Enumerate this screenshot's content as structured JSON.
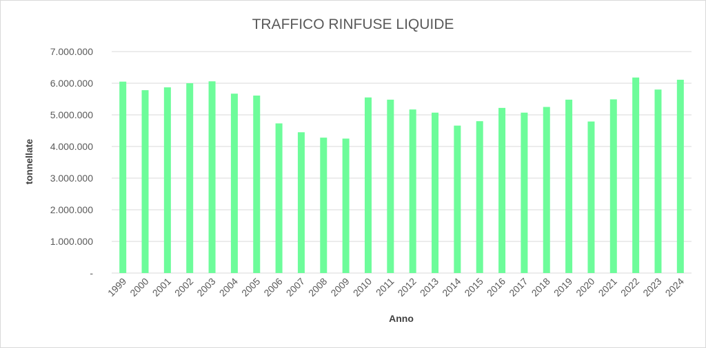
{
  "chart_data": {
    "type": "bar",
    "title": "TRAFFICO RINFUSE LIQUIDE",
    "xlabel": "Anno",
    "ylabel": "tonnellate",
    "categories": [
      "1999",
      "2000",
      "2001",
      "2002",
      "2003",
      "2004",
      "2005",
      "2006",
      "2007",
      "2008",
      "2009",
      "2010",
      "2011",
      "2012",
      "2013",
      "2014",
      "2015",
      "2016",
      "2017",
      "2018",
      "2019",
      "2020",
      "2021",
      "2022",
      "2023",
      "2024"
    ],
    "series": [
      {
        "values": [
          6050000,
          5780000,
          5870000,
          6000000,
          6060000,
          5670000,
          5610000,
          4730000,
          4450000,
          4280000,
          4250000,
          5550000,
          5480000,
          5170000,
          5070000,
          4660000,
          4800000,
          5220000,
          5070000,
          5250000,
          5480000,
          4790000,
          5490000,
          6180000,
          5800000,
          6110000
        ]
      }
    ],
    "ylim": [
      0,
      7000000
    ],
    "yticks": [
      0,
      1000000,
      2000000,
      3000000,
      4000000,
      5000000,
      6000000,
      7000000
    ],
    "ytick_labels": [
      "-",
      "1.000.000",
      "2.000.000",
      "3.000.000",
      "4.000.000",
      "5.000.000",
      "6.000.000",
      "7.000.000"
    ],
    "grid": true,
    "legend": "none",
    "colors": {
      "bar": "#6dfc9a",
      "grid": "#d9d9d9",
      "text": "#595959"
    }
  }
}
